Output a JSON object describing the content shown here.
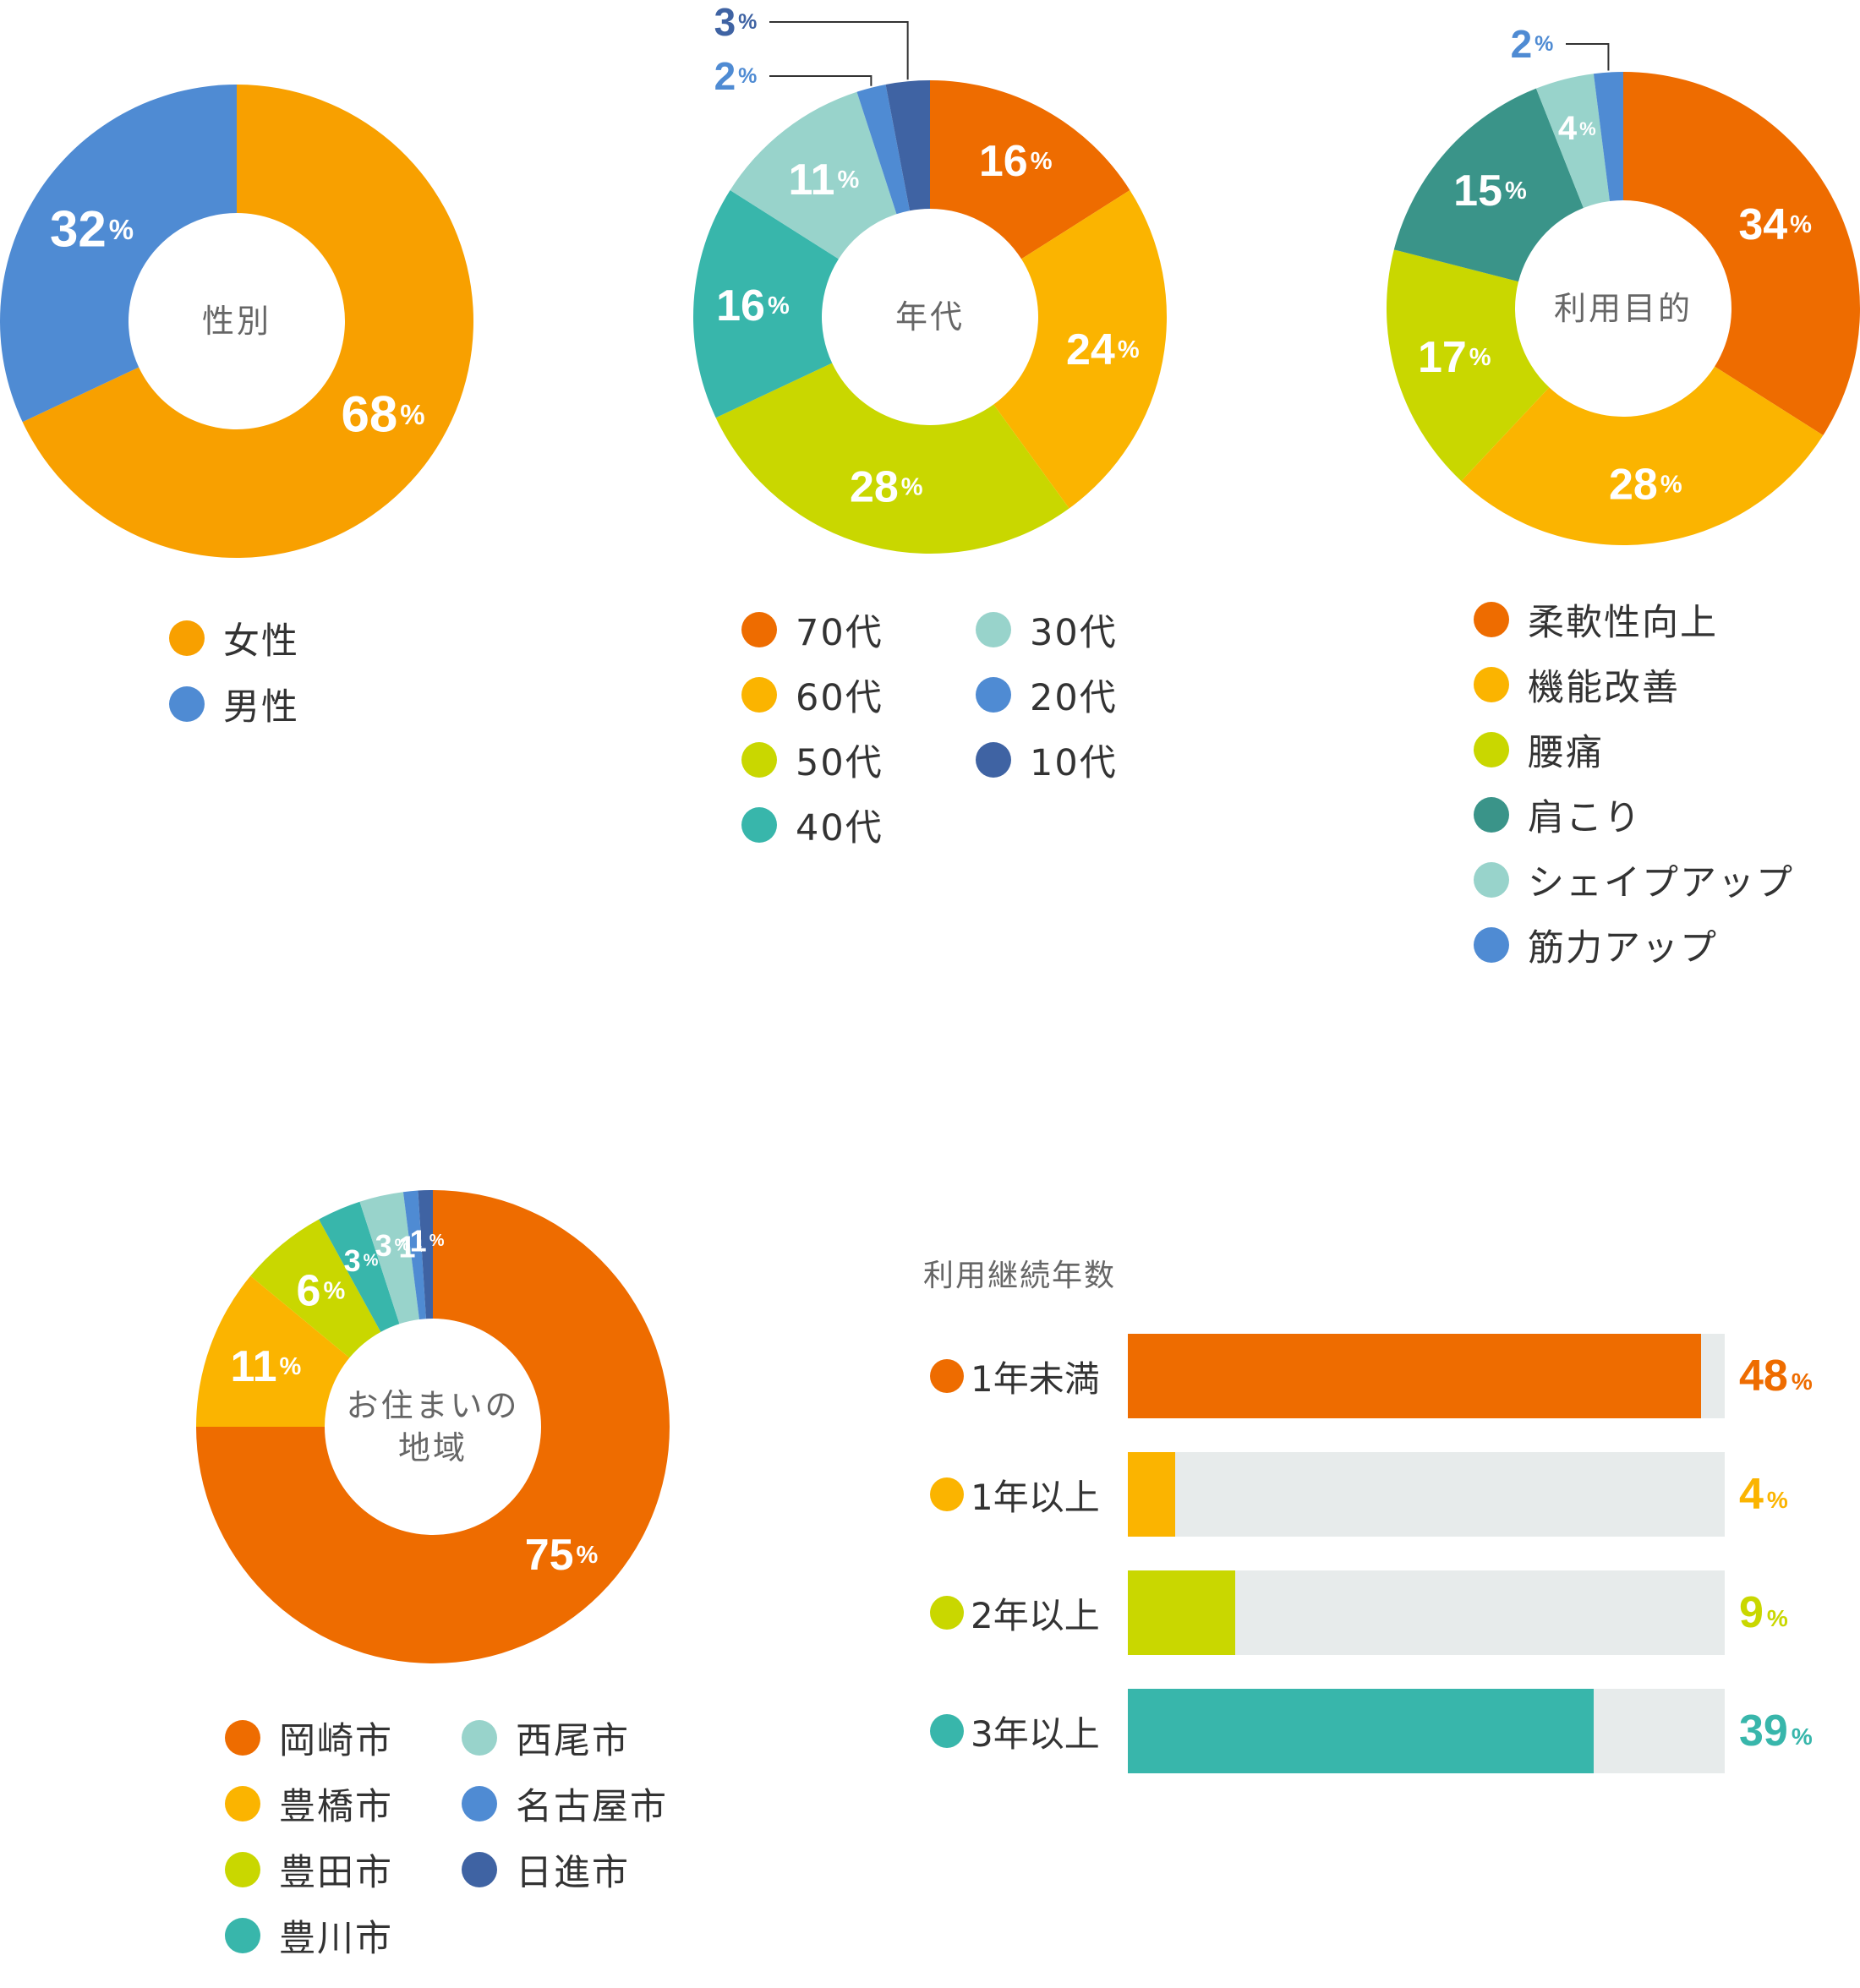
{
  "chart_data": [
    {
      "id": "gender",
      "type": "pie",
      "center_label": [
        "性別"
      ],
      "slices": [
        {
          "name": "女性",
          "value": 68,
          "color": "#f8a000"
        },
        {
          "name": "男性",
          "value": 32,
          "color": "#4f8bd3"
        }
      ],
      "unit": "%"
    },
    {
      "id": "age",
      "type": "pie",
      "center_label": [
        "年代"
      ],
      "slices": [
        {
          "name": "70代",
          "value": 16,
          "color": "#ee6c00"
        },
        {
          "name": "60代",
          "value": 24,
          "color": "#fbb400"
        },
        {
          "name": "50代",
          "value": 28,
          "color": "#c9d700"
        },
        {
          "name": "40代",
          "value": 16,
          "color": "#38b6ab"
        },
        {
          "name": "30代",
          "value": 11,
          "color": "#98d3cb"
        },
        {
          "name": "20代",
          "value": 2,
          "color": "#4f8bd3"
        },
        {
          "name": "10代",
          "value": 3,
          "color": "#3f63a3"
        }
      ],
      "unit": "%"
    },
    {
      "id": "purpose",
      "type": "pie",
      "center_label": [
        "利用目的"
      ],
      "slices": [
        {
          "name": "柔軟性向上",
          "value": 34,
          "color": "#ee6c00"
        },
        {
          "name": "機能改善",
          "value": 28,
          "color": "#fbb400"
        },
        {
          "name": "腰痛",
          "value": 17,
          "color": "#c9d700"
        },
        {
          "name": "肩こり",
          "value": 15,
          "color": "#3a9489"
        },
        {
          "name": "シェイプアップ",
          "value": 4,
          "color": "#98d3cb"
        },
        {
          "name": "筋力アップ",
          "value": 2,
          "color": "#4f8bd3"
        }
      ],
      "unit": "%"
    },
    {
      "id": "area",
      "type": "pie",
      "center_label": [
        "お住まいの",
        "地域"
      ],
      "slices": [
        {
          "name": "岡崎市",
          "value": 75,
          "color": "#ee6c00"
        },
        {
          "name": "豊橋市",
          "value": 11,
          "color": "#fbb400"
        },
        {
          "name": "豊田市",
          "value": 6,
          "color": "#c9d700"
        },
        {
          "name": "豊川市",
          "value": 3,
          "color": "#38b6ab"
        },
        {
          "name": "西尾市",
          "value": 3,
          "color": "#98d3cb"
        },
        {
          "name": "名古屋市",
          "value": 1,
          "color": "#4f8bd3"
        },
        {
          "name": "日進市",
          "value": 1,
          "color": "#3f63a3"
        }
      ],
      "unit": "%"
    },
    {
      "id": "years",
      "type": "bar",
      "title": "利用継続年数",
      "orientation": "horizontal",
      "categories": [
        "1年未満",
        "1年以上",
        "2年以上",
        "3年以上"
      ],
      "values": [
        48,
        4,
        9,
        39
      ],
      "colors": [
        "#ee6c00",
        "#fbb400",
        "#c9d700",
        "#38b6ab"
      ],
      "xlim": [
        0,
        50
      ],
      "unit": "%"
    }
  ]
}
